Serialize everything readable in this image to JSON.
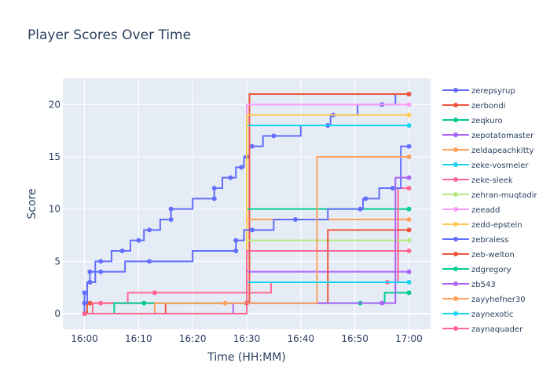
{
  "chart_data": {
    "type": "line",
    "title": "Player Scores Over Time",
    "xlabel": "Time (HH:MM)",
    "ylabel": "Score",
    "x_range": [
      "15:56",
      "17:04"
    ],
    "ylim": [
      -1.5,
      22.5
    ],
    "x_ticks": [
      "16:00",
      "16:10",
      "16:20",
      "16:30",
      "16:40",
      "16:50",
      "17:00"
    ],
    "y_ticks": [
      0,
      5,
      10,
      15,
      20
    ],
    "grid": true,
    "legend_position": "right",
    "line_shape": "step",
    "series": [
      {
        "name": "zerepsyrup",
        "color": "#636efa",
        "points": [
          [
            "16:00",
            0
          ],
          [
            "16:00",
            1
          ],
          [
            "16:00",
            2
          ],
          [
            "16:01",
            3
          ],
          [
            "16:01",
            4
          ],
          [
            "16:03",
            5
          ],
          [
            "16:07",
            6
          ],
          [
            "16:10",
            7
          ],
          [
            "16:12",
            8
          ],
          [
            "16:16",
            9
          ],
          [
            "16:16",
            10
          ],
          [
            "16:24",
            11
          ],
          [
            "16:24",
            12
          ],
          [
            "16:27",
            13
          ],
          [
            "16:29",
            14
          ],
          [
            "16:30",
            15
          ],
          [
            "16:31",
            16
          ],
          [
            "16:35",
            17
          ],
          [
            "16:45",
            18
          ],
          [
            "16:46",
            19
          ],
          [
            "16:55",
            20
          ],
          [
            "17:00",
            21
          ]
        ]
      },
      {
        "name": "zerbondi",
        "color": "#ef553b",
        "points": [
          [
            "16:00",
            0
          ],
          [
            "16:01",
            1
          ],
          [
            "17:00",
            21
          ]
        ]
      },
      {
        "name": "zeqkuro",
        "color": "#00cc96",
        "points": [
          [
            "16:00",
            0
          ],
          [
            "17:00",
            10
          ]
        ]
      },
      {
        "name": "zepotatomaster",
        "color": "#ab63fa",
        "points": [
          [
            "16:00",
            0
          ],
          [
            "17:00",
            4
          ]
        ]
      },
      {
        "name": "zeldapeachkitty",
        "color": "#ffa15a",
        "points": [
          [
            "16:00",
            0
          ],
          [
            "17:00",
            9
          ]
        ]
      },
      {
        "name": "zeke-vosmeier",
        "color": "#19d3f3",
        "points": [
          [
            "16:00",
            0
          ],
          [
            "17:00",
            18
          ]
        ]
      },
      {
        "name": "zeke-sleek",
        "color": "#ff6692",
        "points": [
          [
            "16:00",
            0
          ],
          [
            "16:03",
            1
          ],
          [
            "16:13",
            2
          ],
          [
            "16:56",
            3
          ],
          [
            "17:00",
            12
          ]
        ]
      },
      {
        "name": "zehran-muqtadir",
        "color": "#b6e880",
        "points": [
          [
            "16:00",
            0
          ],
          [
            "17:00",
            7
          ]
        ]
      },
      {
        "name": "zeeadd",
        "color": "#ff97ff",
        "points": [
          [
            "16:00",
            0
          ],
          [
            "17:00",
            20
          ]
        ]
      },
      {
        "name": "zedd-epstein",
        "color": "#fecb52",
        "points": [
          [
            "16:00",
            0
          ],
          [
            "17:00",
            19
          ]
        ]
      },
      {
        "name": "zebraless",
        "color": "#636efa",
        "points": [
          [
            "16:00",
            0
          ],
          [
            "16:00",
            1
          ],
          [
            "16:01",
            3
          ],
          [
            "16:03",
            4
          ],
          [
            "16:12",
            5
          ],
          [
            "16:28",
            6
          ],
          [
            "16:28",
            7
          ],
          [
            "16:31",
            8
          ],
          [
            "16:39",
            9
          ],
          [
            "16:51",
            10
          ],
          [
            "16:52",
            11
          ],
          [
            "16:57",
            12
          ],
          [
            "17:00",
            16
          ]
        ]
      },
      {
        "name": "zeb-welton",
        "color": "#ef553b",
        "points": [
          [
            "16:00",
            0
          ],
          [
            "16:30",
            1
          ],
          [
            "17:00",
            8
          ]
        ]
      },
      {
        "name": "zdgregory",
        "color": "#00cc96",
        "points": [
          [
            "16:00",
            0
          ],
          [
            "16:11",
            1
          ],
          [
            "16:51",
            1
          ],
          [
            "17:00",
            2
          ]
        ]
      },
      {
        "name": "zb543",
        "color": "#ab63fa",
        "points": [
          [
            "16:00",
            0
          ],
          [
            "16:55",
            1
          ],
          [
            "17:00",
            13
          ]
        ]
      },
      {
        "name": "zayyhefner30",
        "color": "#ffa15a",
        "points": [
          [
            "16:00",
            0
          ],
          [
            "16:26",
            1
          ],
          [
            "17:00",
            15
          ]
        ]
      },
      {
        "name": "zaynexotic",
        "color": "#19d3f3",
        "points": [
          [
            "16:00",
            0
          ],
          [
            "17:00",
            3
          ]
        ]
      },
      {
        "name": "zaynaquader",
        "color": "#ff6692",
        "points": [
          [
            "16:00",
            0
          ],
          [
            "17:00",
            6
          ]
        ]
      }
    ]
  }
}
